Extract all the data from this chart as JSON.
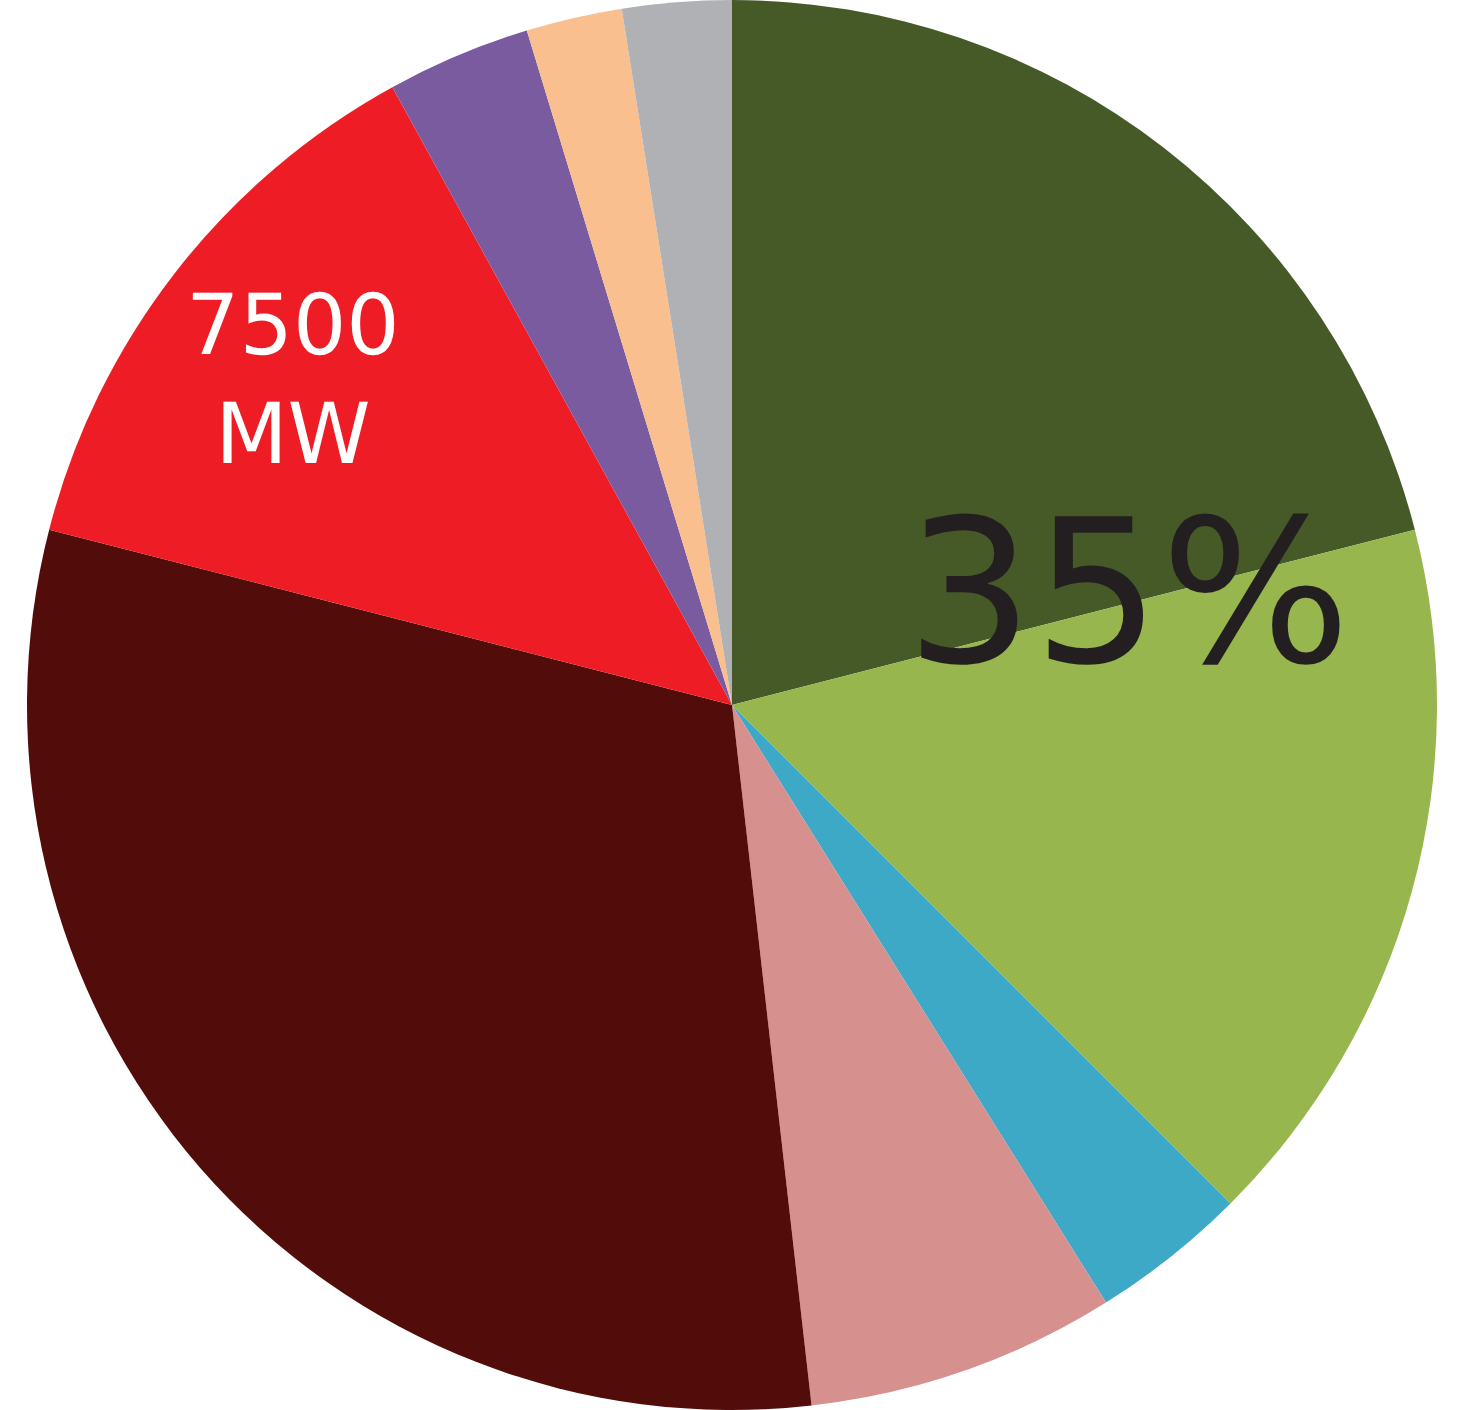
{
  "chart_data": {
    "type": "pie",
    "categories": [
      null,
      null,
      null,
      null,
      null,
      null,
      null,
      null,
      null
    ],
    "values": [
      21,
      16.5,
      3.6,
      7.1,
      30.8,
      13,
      3.3,
      2.2,
      2.5
    ],
    "colors": [
      "#465a28",
      "#97b64e",
      "#3ea9c6",
      "#d6908e",
      "#520c0a",
      "#ee1c25",
      "#7b5ba0",
      "#f9bf8e",
      "#b0b1b5"
    ],
    "annotations": [
      "35%",
      "7500 MW"
    ],
    "legend": false
  }
}
